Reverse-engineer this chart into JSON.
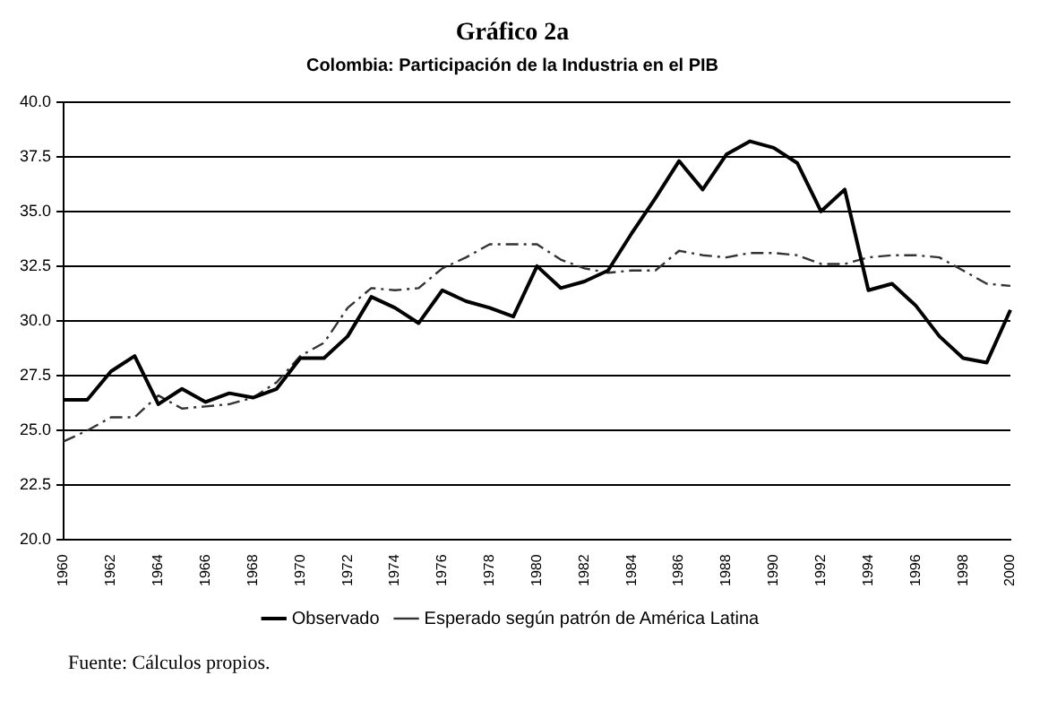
{
  "chart_data": {
    "type": "line",
    "title": "Gráfico 2a",
    "subtitle": "Colombia: Participación de la Industria en el PIB",
    "categories": [
      "1960",
      null,
      "1962",
      null,
      "1964",
      null,
      "1966",
      null,
      "1968",
      null,
      "1970",
      null,
      "1972",
      null,
      "1974",
      null,
      "1976",
      null,
      "1978",
      null,
      "1980",
      null,
      "1982",
      null,
      "1984",
      null,
      "1986",
      null,
      "1988",
      null,
      "1990",
      null,
      "1992",
      null,
      "1994",
      null,
      "1996",
      null,
      "1998",
      null,
      "2000"
    ],
    "series": [
      {
        "name": "Observado",
        "color": "#000000",
        "line_style": "solid",
        "values": [
          26.4,
          26.4,
          27.7,
          28.4,
          26.2,
          26.9,
          26.3,
          26.7,
          26.5,
          26.9,
          28.3,
          28.3,
          29.3,
          31.1,
          30.6,
          29.9,
          31.4,
          30.9,
          30.6,
          30.2,
          32.5,
          31.5,
          31.8,
          32.3,
          34.0,
          35.6,
          37.3,
          36.0,
          37.6,
          38.2,
          37.9,
          37.2,
          35.0,
          36.0,
          31.4,
          31.7,
          30.7,
          29.3,
          28.3,
          28.1,
          30.5
        ]
      },
      {
        "name": "Esperado según patrón de América Latina",
        "color": "#333333",
        "line_style": "dashed",
        "values": [
          24.5,
          25.0,
          25.6,
          25.6,
          26.6,
          26.0,
          26.1,
          26.2,
          26.5,
          27.2,
          28.4,
          29.0,
          30.6,
          31.5,
          31.4,
          31.5,
          32.4,
          32.9,
          33.5,
          33.5,
          33.5,
          32.8,
          32.4,
          32.2,
          32.3,
          32.3,
          33.2,
          33.0,
          32.9,
          33.1,
          33.1,
          33.0,
          32.6,
          32.6,
          32.9,
          33.0,
          33.0,
          32.9,
          32.3,
          31.7,
          31.6
        ]
      }
    ],
    "ylim": [
      20,
      40
    ],
    "yticks": [
      {
        "value": 20,
        "label": "20.0"
      },
      {
        "value": 22.5,
        "label": "22.5"
      },
      {
        "value": 25,
        "label": "25.0"
      },
      {
        "value": 27.5,
        "label": "27.5"
      },
      {
        "value": 30,
        "label": "30.0"
      },
      {
        "value": 32.5,
        "label": "32.5"
      },
      {
        "value": 35,
        "label": "35.0"
      },
      {
        "value": 37.5,
        "label": "37.5"
      },
      {
        "value": 40,
        "label": "40.0"
      }
    ],
    "grid": "y",
    "legend": "bottom",
    "marker": "none",
    "annotations": [
      "Fuente: Cálculos propios."
    ]
  }
}
